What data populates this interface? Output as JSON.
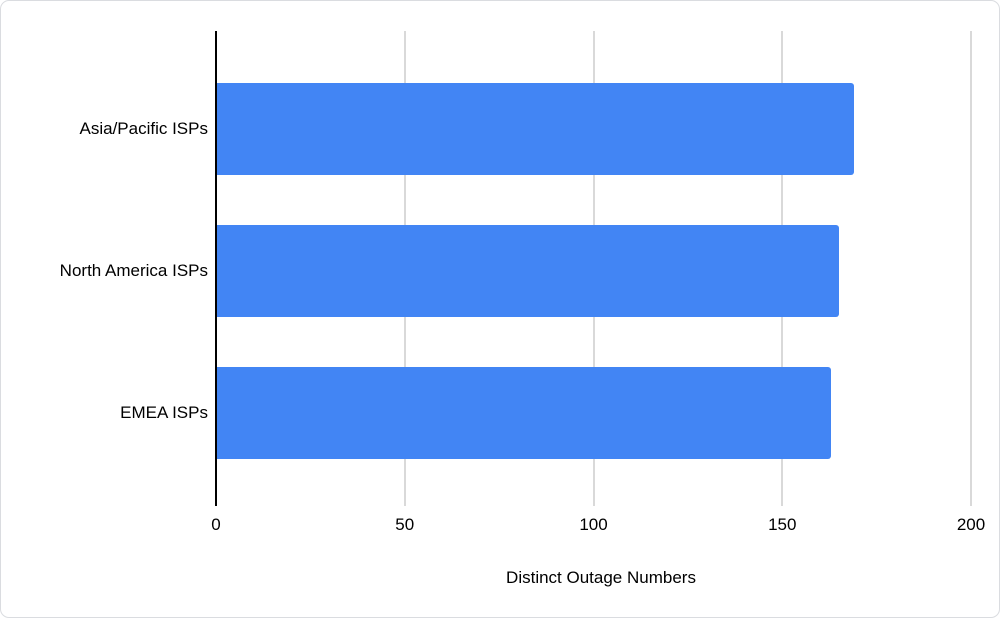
{
  "chart": {
    "background_color": "#ffffff",
    "border_color": "#dadce0"
  },
  "chart_data": {
    "type": "bar",
    "orientation": "horizontal",
    "categories": [
      "Asia/Pacific ISPs",
      "North America ISPs",
      "EMEA ISPs"
    ],
    "values": [
      169,
      165,
      163
    ],
    "xlabel": "Distinct Outage Numbers",
    "ylabel": "",
    "xlim": [
      0,
      200
    ],
    "x_ticks": [
      0,
      50,
      100,
      150,
      200
    ],
    "grid": true,
    "legend": "none",
    "bar_color": "#4285f4",
    "axis_line_color": "#000000",
    "gridline_color": "#d9d9d9",
    "text_color": "#000000"
  }
}
